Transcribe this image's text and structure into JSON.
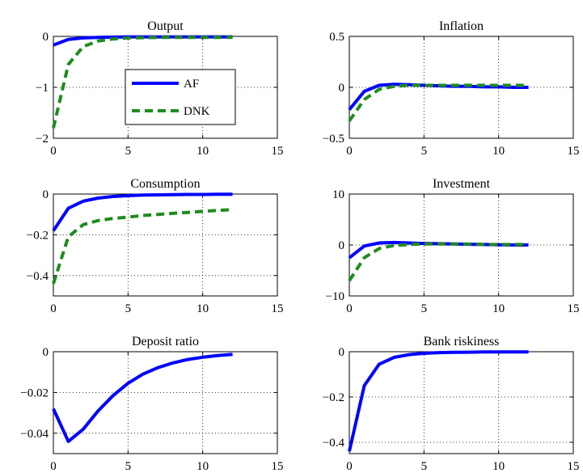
{
  "chart_data": [
    {
      "type": "line",
      "title": "Output",
      "xlim": [
        0,
        15
      ],
      "ylim": [
        -2,
        0
      ],
      "xticks": [
        0,
        5,
        10,
        15
      ],
      "yticks": [
        -2,
        -1,
        0
      ],
      "xtick_labels": [
        "0",
        "5",
        "10",
        "15"
      ],
      "ytick_labels": [
        "−2",
        "−1",
        "0"
      ],
      "grid": true,
      "legend": {
        "position": "center",
        "entries": [
          "AF",
          "DNK"
        ]
      },
      "series": [
        {
          "name": "AF",
          "color": "#0000ff",
          "style": "solid",
          "x": [
            0,
            1,
            2,
            3,
            4,
            5,
            6,
            7,
            8,
            9,
            10,
            11,
            12
          ],
          "y": [
            -0.17,
            -0.06,
            -0.03,
            -0.02,
            -0.015,
            -0.01,
            -0.01,
            -0.01,
            -0.01,
            -0.01,
            -0.01,
            -0.01,
            -0.01
          ]
        },
        {
          "name": "DNK",
          "color": "#1e8c1e",
          "style": "dashed",
          "x": [
            0,
            1,
            2,
            3,
            4,
            5,
            6,
            7,
            8,
            9,
            10,
            11,
            12
          ],
          "y": [
            -1.8,
            -0.55,
            -0.2,
            -0.09,
            -0.05,
            -0.03,
            -0.025,
            -0.02,
            -0.02,
            -0.02,
            -0.02,
            -0.02,
            -0.02
          ]
        }
      ]
    },
    {
      "type": "line",
      "title": "Inflation",
      "xlim": [
        0,
        15
      ],
      "ylim": [
        -0.5,
        0.5
      ],
      "xticks": [
        0,
        5,
        10,
        15
      ],
      "yticks": [
        -0.5,
        0,
        0.5
      ],
      "xtick_labels": [
        "0",
        "5",
        "10",
        "15"
      ],
      "ytick_labels": [
        "−0.5",
        "0",
        "0.5"
      ],
      "grid": true,
      "series": [
        {
          "name": "AF",
          "color": "#0000ff",
          "style": "solid",
          "x": [
            0,
            1,
            2,
            3,
            4,
            5,
            6,
            7,
            8,
            9,
            10,
            11,
            12
          ],
          "y": [
            -0.22,
            -0.04,
            0.02,
            0.03,
            0.025,
            0.02,
            0.015,
            0.01,
            0.01,
            0.005,
            0.005,
            0.0,
            0.0
          ]
        },
        {
          "name": "DNK",
          "color": "#1e8c1e",
          "style": "dashed",
          "x": [
            0,
            1,
            2,
            3,
            4,
            5,
            6,
            7,
            8,
            9,
            10,
            11,
            12
          ],
          "y": [
            -0.33,
            -0.12,
            -0.02,
            0.01,
            0.02,
            0.02,
            0.02,
            0.02,
            0.02,
            0.02,
            0.02,
            0.02,
            0.02
          ]
        }
      ]
    },
    {
      "type": "line",
      "title": "Consumption",
      "xlim": [
        0,
        15
      ],
      "ylim": [
        -0.5,
        0
      ],
      "xticks": [
        0,
        5,
        10,
        15
      ],
      "yticks": [
        -0.4,
        -0.2,
        0
      ],
      "xtick_labels": [
        "0",
        "5",
        "10",
        "15"
      ],
      "ytick_labels": [
        "−0.4",
        "−0.2",
        "0"
      ],
      "grid": true,
      "series": [
        {
          "name": "AF",
          "color": "#0000ff",
          "style": "solid",
          "x": [
            0,
            1,
            2,
            3,
            4,
            5,
            6,
            7,
            8,
            9,
            10,
            11,
            12
          ],
          "y": [
            -0.18,
            -0.07,
            -0.035,
            -0.02,
            -0.012,
            -0.008,
            -0.005,
            -0.004,
            -0.003,
            -0.002,
            -0.002,
            -0.001,
            -0.001
          ]
        },
        {
          "name": "DNK",
          "color": "#1e8c1e",
          "style": "dashed",
          "x": [
            0,
            1,
            2,
            3,
            4,
            5,
            6,
            7,
            8,
            9,
            10,
            11,
            12
          ],
          "y": [
            -0.44,
            -0.21,
            -0.15,
            -0.13,
            -0.12,
            -0.113,
            -0.105,
            -0.1,
            -0.095,
            -0.09,
            -0.085,
            -0.08,
            -0.076
          ]
        }
      ]
    },
    {
      "type": "line",
      "title": "Investment",
      "xlim": [
        0,
        15
      ],
      "ylim": [
        -10,
        10
      ],
      "xticks": [
        0,
        5,
        10,
        15
      ],
      "yticks": [
        -10,
        0,
        10
      ],
      "xtick_labels": [
        "0",
        "5",
        "10",
        "15"
      ],
      "ytick_labels": [
        "−10",
        "0",
        "10"
      ],
      "grid": true,
      "series": [
        {
          "name": "AF",
          "color": "#0000ff",
          "style": "solid",
          "x": [
            0,
            1,
            2,
            3,
            4,
            5,
            6,
            7,
            8,
            9,
            10,
            11,
            12
          ],
          "y": [
            -2.5,
            -0.2,
            0.4,
            0.5,
            0.4,
            0.3,
            0.25,
            0.2,
            0.15,
            0.1,
            0.05,
            0.0,
            0.0
          ]
        },
        {
          "name": "DNK",
          "color": "#1e8c1e",
          "style": "dashed",
          "x": [
            0,
            1,
            2,
            3,
            4,
            5,
            6,
            7,
            8,
            9,
            10,
            11,
            12
          ],
          "y": [
            -7.0,
            -2.5,
            -0.7,
            -0.1,
            0.1,
            0.2,
            0.2,
            0.2,
            0.2,
            0.1,
            0.1,
            0.1,
            0.1
          ]
        }
      ]
    },
    {
      "type": "line",
      "title": "Deposit ratio",
      "xlim": [
        0,
        15
      ],
      "ylim": [
        -0.05,
        0
      ],
      "xticks": [
        0,
        5,
        10,
        15
      ],
      "yticks": [
        -0.04,
        -0.02,
        0
      ],
      "xtick_labels": [
        "0",
        "5",
        "10",
        "15"
      ],
      "ytick_labels": [
        "−0.04",
        "−0.02",
        "0"
      ],
      "grid": true,
      "series": [
        {
          "name": "AF",
          "color": "#0000ff",
          "style": "solid",
          "x": [
            0,
            1,
            2,
            3,
            4,
            5,
            6,
            7,
            8,
            9,
            10,
            11,
            12
          ],
          "y": [
            -0.028,
            -0.044,
            -0.038,
            -0.029,
            -0.0215,
            -0.0155,
            -0.011,
            -0.0078,
            -0.0055,
            -0.0038,
            -0.0027,
            -0.0019,
            -0.0013
          ]
        }
      ]
    },
    {
      "type": "line",
      "title": "Bank riskiness",
      "xlim": [
        0,
        15
      ],
      "ylim": [
        -0.45,
        0
      ],
      "xticks": [
        0,
        5,
        10,
        15
      ],
      "yticks": [
        -0.4,
        -0.2,
        0
      ],
      "xtick_labels": [
        "0",
        "5",
        "10",
        "15"
      ],
      "ytick_labels": [
        "−0.4",
        "−0.2",
        "0"
      ],
      "grid": true,
      "series": [
        {
          "name": "AF",
          "color": "#0000ff",
          "style": "solid",
          "x": [
            0,
            1,
            2,
            3,
            4,
            5,
            6,
            7,
            8,
            9,
            10,
            11,
            12
          ],
          "y": [
            -0.44,
            -0.15,
            -0.055,
            -0.025,
            -0.013,
            -0.007,
            -0.004,
            -0.003,
            -0.002,
            -0.001,
            -0.001,
            -0.001,
            -0.001
          ]
        }
      ]
    }
  ]
}
